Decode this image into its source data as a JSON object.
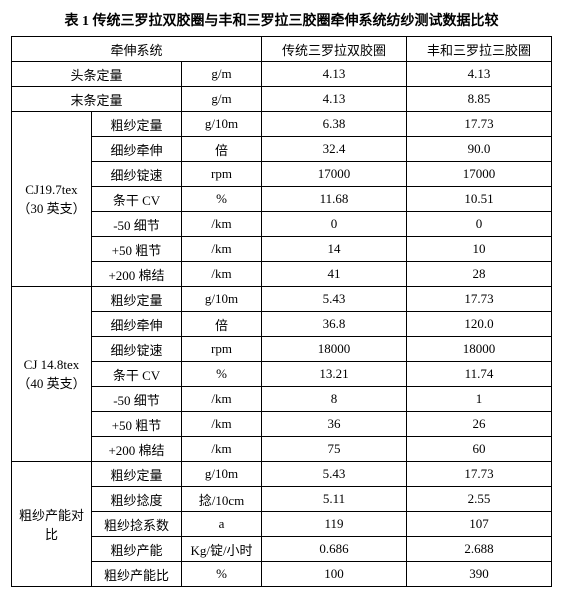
{
  "title": "表 1 传统三罗拉双胶圈与丰和三罗拉三胶圈牵伸系统纺纱测试数据比较",
  "header": {
    "sys": "牵伸系统",
    "colA": "传统三罗拉双胶圈",
    "colB": "丰和三罗拉三胶圈"
  },
  "rows": {
    "r1": {
      "label": "头条定量",
      "unit": "g/m",
      "a": "4.13",
      "b": "4.13"
    },
    "r2": {
      "label": "末条定量",
      "unit": "g/m",
      "a": "4.13",
      "b": "8.85"
    },
    "g1": {
      "label": "CJ19.7tex（30 英支）"
    },
    "r3": {
      "label": "粗纱定量",
      "unit": "g/10m",
      "a": "6.38",
      "b": "17.73"
    },
    "r4": {
      "label": "细纱牵伸",
      "unit": "倍",
      "a": "32.4",
      "b": "90.0"
    },
    "r5": {
      "label": "细纱锭速",
      "unit": "rpm",
      "a": "17000",
      "b": "17000"
    },
    "r6": {
      "label": "条干 CV",
      "unit": "%",
      "a": "11.68",
      "b": "10.51"
    },
    "r7": {
      "label": "-50 细节",
      "unit": "/km",
      "a": "0",
      "b": "0"
    },
    "r8": {
      "label": "+50 粗节",
      "unit": "/km",
      "a": "14",
      "b": "10"
    },
    "r9": {
      "label": "+200 棉结",
      "unit": "/km",
      "a": "41",
      "b": "28"
    },
    "g2": {
      "label": "CJ 14.8tex（40 英支）"
    },
    "r10": {
      "label": "粗纱定量",
      "unit": "g/10m",
      "a": "5.43",
      "b": "17.73"
    },
    "r11": {
      "label": "细纱牵伸",
      "unit": "倍",
      "a": "36.8",
      "b": "120.0"
    },
    "r12": {
      "label": "细纱锭速",
      "unit": "rpm",
      "a": "18000",
      "b": "18000"
    },
    "r13": {
      "label": "条干 CV",
      "unit": "%",
      "a": "13.21",
      "b": "11.74"
    },
    "r14": {
      "label": "-50 细节",
      "unit": "/km",
      "a": "8",
      "b": "1"
    },
    "r15": {
      "label": "+50 粗节",
      "unit": "/km",
      "a": "36",
      "b": "26"
    },
    "r16": {
      "label": "+200 棉结",
      "unit": "/km",
      "a": "75",
      "b": "60"
    },
    "g3": {
      "label": "粗纱产能对比"
    },
    "r17": {
      "label": "粗纱定量",
      "unit": "g/10m",
      "a": "5.43",
      "b": "17.73"
    },
    "r18": {
      "label": "粗纱捻度",
      "unit": "捻/10cm",
      "a": "5.11",
      "b": "2.55"
    },
    "r19": {
      "label": "粗纱捻系数",
      "unit": "a",
      "a": "119",
      "b": "107"
    },
    "r20": {
      "label": "粗纱产能",
      "unit": "Kg/锭/小时",
      "a": "0.686",
      "b": "2.688"
    },
    "r21": {
      "label": "粗纱产能比",
      "unit": "%",
      "a": "100",
      "b": "390"
    }
  }
}
